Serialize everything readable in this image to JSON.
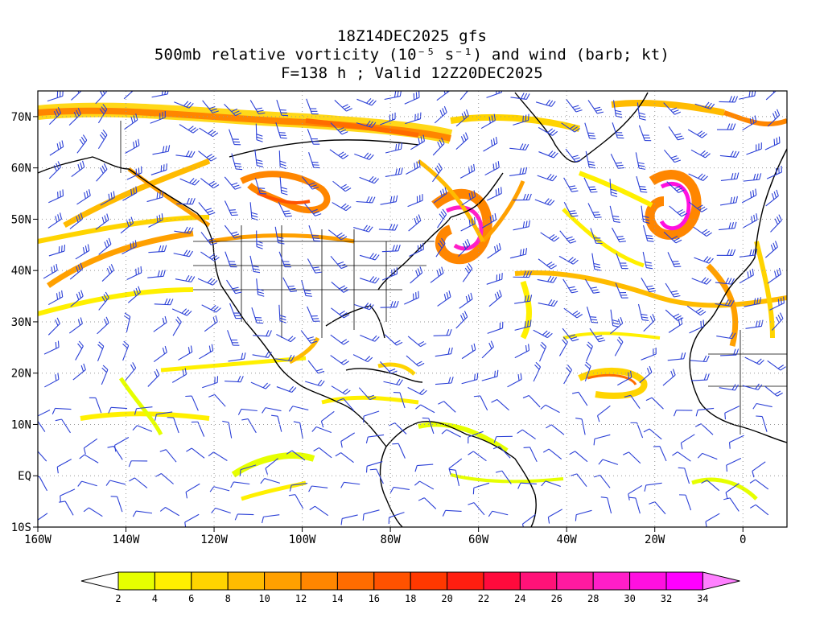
{
  "titles": {
    "line1": "18Z14DEC2025 gfs",
    "line2": "500mb relative vorticity (10⁻⁵ s⁻¹) and wind (barb; kt)",
    "line3": "F=138 h ; Valid 12Z20DEC2025"
  },
  "map": {
    "lat_labels": [
      "70N",
      "60N",
      "50N",
      "40N",
      "30N",
      "20N",
      "10N",
      "EQ",
      "10S"
    ],
    "lon_labels": [
      "160W",
      "140W",
      "120W",
      "100W",
      "80W",
      "60W",
      "40W",
      "20W",
      "0"
    ],
    "lat_range": [
      -10,
      75
    ],
    "lon_range": [
      -160,
      10
    ],
    "barb_color": "#2a3fd6",
    "grid": "dotted"
  },
  "colorbar": {
    "labels": [
      "2",
      "4",
      "6",
      "8",
      "10",
      "12",
      "14",
      "16",
      "18",
      "20",
      "22",
      "24",
      "26",
      "28",
      "30",
      "32",
      "34"
    ],
    "colors": [
      "#ffffff",
      "#e6ff00",
      "#fff000",
      "#ffd400",
      "#ffbb00",
      "#ffa000",
      "#ff8600",
      "#ff6c00",
      "#ff5200",
      "#ff3800",
      "#ff1e10",
      "#ff0a3c",
      "#ff1278",
      "#ff1aa0",
      "#ff1ec8",
      "#ff10e0",
      "#ff00ff",
      "#ff80ff"
    ]
  }
}
